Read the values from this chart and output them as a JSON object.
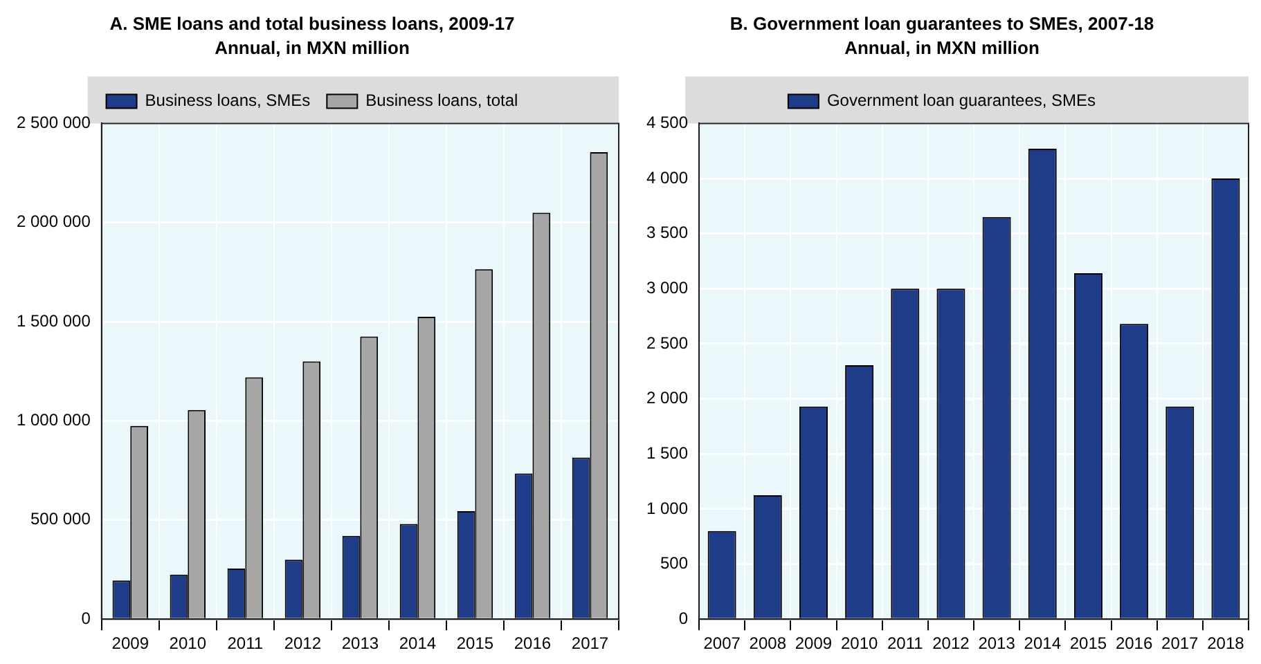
{
  "chart_data": [
    {
      "type": "bar",
      "title": "A. SME loans and total business loans, 2009-17",
      "subtitle": "Annual, in MXN million",
      "categories": [
        "2009",
        "2010",
        "2011",
        "2012",
        "2013",
        "2014",
        "2015",
        "2016",
        "2017"
      ],
      "series": [
        {
          "name": "Business loans, SMEs",
          "color": "#1f3c88",
          "values": [
            195000,
            225000,
            255000,
            300000,
            420000,
            480000,
            545000,
            735000,
            815000
          ]
        },
        {
          "name": "Business loans, total",
          "color": "#a6a6a6",
          "values": [
            975000,
            1055000,
            1220000,
            1300000,
            1425000,
            1525000,
            1765000,
            2050000,
            2355000
          ]
        }
      ],
      "ylim": [
        0,
        2500000
      ],
      "yticks": [
        {
          "value": 0,
          "label": "0"
        },
        {
          "value": 500000,
          "label": "500 000"
        },
        {
          "value": 1000000,
          "label": "1 000 000"
        },
        {
          "value": 1500000,
          "label": "1 500 000"
        },
        {
          "value": 2000000,
          "label": "2 000 000"
        },
        {
          "value": 2500000,
          "label": "2 500 000"
        }
      ],
      "grid": true,
      "legend": "top"
    },
    {
      "type": "bar",
      "title": "B. Government loan guarantees to SMEs, 2007-18",
      "subtitle": "Annual, in MXN million",
      "categories": [
        "2007",
        "2008",
        "2009",
        "2010",
        "2011",
        "2012",
        "2013",
        "2014",
        "2015",
        "2016",
        "2017",
        "2018"
      ],
      "series": [
        {
          "name": "Government loan guarantees, SMEs",
          "color": "#1f3c88",
          "values": [
            800,
            1125,
            1930,
            2305,
            3000,
            3000,
            3650,
            4270,
            3140,
            2680,
            1930,
            4000
          ]
        }
      ],
      "ylim": [
        0,
        4500
      ],
      "yticks": [
        {
          "value": 0,
          "label": "0"
        },
        {
          "value": 500,
          "label": "500"
        },
        {
          "value": 1000,
          "label": "1 000"
        },
        {
          "value": 1500,
          "label": "1 500"
        },
        {
          "value": 2000,
          "label": "2 000"
        },
        {
          "value": 2500,
          "label": "2 500"
        },
        {
          "value": 3000,
          "label": "3 000"
        },
        {
          "value": 3500,
          "label": "3 500"
        },
        {
          "value": 4000,
          "label": "4 000"
        },
        {
          "value": 4500,
          "label": "4 500"
        }
      ],
      "grid": true,
      "legend": "top"
    }
  ]
}
